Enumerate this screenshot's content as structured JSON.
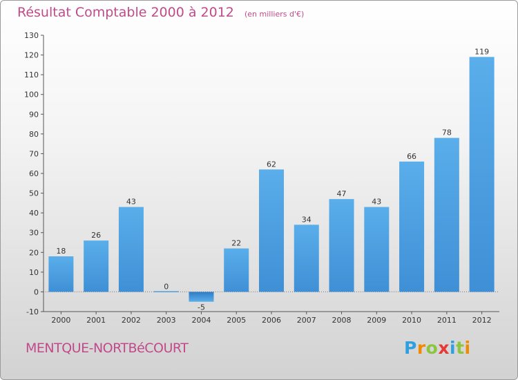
{
  "chart_data": {
    "type": "bar",
    "title": "Résultat Comptable 2000 à 2012",
    "subtitle": "(en milliers d'€)",
    "categories": [
      "2000",
      "2001",
      "2002",
      "2003",
      "2004",
      "2005",
      "2006",
      "2007",
      "2008",
      "2009",
      "2010",
      "2011",
      "2012"
    ],
    "values": [
      18,
      26,
      43,
      0,
      -5,
      22,
      62,
      34,
      47,
      43,
      66,
      78,
      119
    ],
    "ylim": [
      -10,
      130
    ],
    "yticks": [
      -10,
      0,
      10,
      20,
      30,
      40,
      50,
      60,
      70,
      80,
      90,
      100,
      110,
      120,
      130
    ],
    "xlabel": "",
    "ylabel": "",
    "grid": false,
    "bar_color": "#3f8fd6"
  },
  "footer": {
    "commune": "MENTQUE-NORTBéCOURT",
    "logo_letters": [
      "P",
      "r",
      "o",
      "x",
      "i",
      "t",
      "i"
    ],
    "logo_colors": [
      "#2f9fe0",
      "#f08a00",
      "#8cc63f",
      "#e53935",
      "#2f9fe0",
      "#8cc63f",
      "#f08a00"
    ]
  }
}
